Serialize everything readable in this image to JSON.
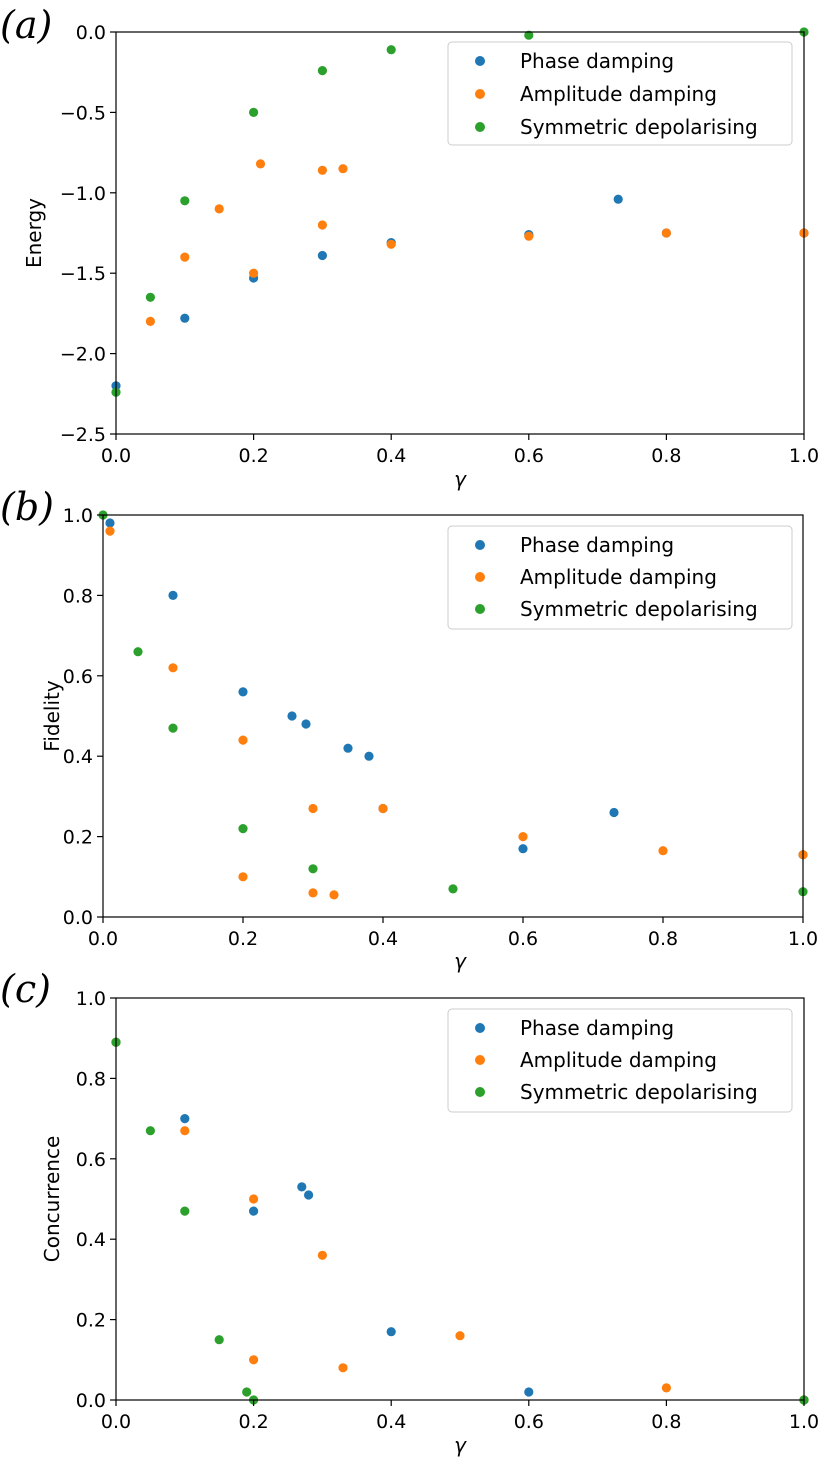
{
  "colors": {
    "phase": "#1f77b4",
    "amplitude": "#ff7f0e",
    "symmetric": "#2ca02c"
  },
  "chart_data": [
    {
      "type": "scatter",
      "panel": "(a)",
      "xlabel": "γ",
      "ylabel": "Energy",
      "xlim": [
        0.0,
        1.0
      ],
      "ylim": [
        -2.5,
        0.0
      ],
      "xticks": [
        "0.0",
        "0.2",
        "0.4",
        "0.6",
        "0.8",
        "1.0"
      ],
      "yticks": [
        "−2.5",
        "−2.0",
        "−1.5",
        "−1.0",
        "−0.5",
        "0.0"
      ],
      "legend_position": "top-right",
      "legend": [
        "Phase damping",
        "Amplitude damping",
        "Symmetric depolarising"
      ],
      "series": [
        {
          "name": "Phase damping",
          "points": [
            [
              0.0,
              -2.2
            ],
            [
              0.1,
              -1.78
            ],
            [
              0.2,
              -1.53
            ],
            [
              0.3,
              -1.39
            ],
            [
              0.4,
              -1.31
            ],
            [
              0.6,
              -1.26
            ],
            [
              0.73,
              -1.04
            ],
            [
              0.8,
              -1.25
            ],
            [
              1.0,
              -1.25
            ]
          ]
        },
        {
          "name": "Amplitude damping",
          "points": [
            [
              0.05,
              -1.8
            ],
            [
              0.1,
              -1.4
            ],
            [
              0.15,
              -1.1
            ],
            [
              0.21,
              -0.82
            ],
            [
              0.3,
              -0.86
            ],
            [
              0.33,
              -0.85
            ],
            [
              0.3,
              -1.2
            ],
            [
              0.2,
              -1.5
            ],
            [
              0.4,
              -1.32
            ],
            [
              0.6,
              -1.27
            ],
            [
              0.8,
              -1.25
            ],
            [
              1.0,
              -1.25
            ]
          ]
        },
        {
          "name": "Symmetric depolarising",
          "points": [
            [
              0.0,
              -2.24
            ],
            [
              0.05,
              -1.65
            ],
            [
              0.1,
              -1.05
            ],
            [
              0.2,
              -0.5
            ],
            [
              0.3,
              -0.24
            ],
            [
              0.4,
              -0.11
            ],
            [
              0.6,
              -0.02
            ],
            [
              1.0,
              0.0
            ]
          ]
        }
      ]
    },
    {
      "type": "scatter",
      "panel": "(b)",
      "xlabel": "γ",
      "ylabel": "Fidelity",
      "xlim": [
        0.0,
        1.0
      ],
      "ylim": [
        0.0,
        1.0
      ],
      "xticks": [
        "0.0",
        "0.2",
        "0.4",
        "0.6",
        "0.8",
        "1.0"
      ],
      "yticks": [
        "0.0",
        "0.2",
        "0.4",
        "0.6",
        "0.8",
        "1.0"
      ],
      "legend_position": "top-right",
      "legend": [
        "Phase damping",
        "Amplitude damping",
        "Symmetric depolarising"
      ],
      "series": [
        {
          "name": "Phase damping",
          "points": [
            [
              0.01,
              0.98
            ],
            [
              0.1,
              0.8
            ],
            [
              0.2,
              0.56
            ],
            [
              0.27,
              0.5
            ],
            [
              0.29,
              0.48
            ],
            [
              0.35,
              0.42
            ],
            [
              0.38,
              0.4
            ],
            [
              0.4,
              0.27
            ],
            [
              0.6,
              0.17
            ],
            [
              0.73,
              0.26
            ],
            [
              1.0,
              0.155
            ]
          ]
        },
        {
          "name": "Amplitude damping",
          "points": [
            [
              0.01,
              0.96
            ],
            [
              0.1,
              0.62
            ],
            [
              0.2,
              0.44
            ],
            [
              0.2,
              0.1
            ],
            [
              0.3,
              0.06
            ],
            [
              0.33,
              0.055
            ],
            [
              0.3,
              0.27
            ],
            [
              0.4,
              0.27
            ],
            [
              0.6,
              0.2
            ],
            [
              0.8,
              0.165
            ],
            [
              1.0,
              0.155
            ]
          ]
        },
        {
          "name": "Symmetric depolarising",
          "points": [
            [
              0.0,
              1.0
            ],
            [
              0.05,
              0.66
            ],
            [
              0.1,
              0.47
            ],
            [
              0.2,
              0.22
            ],
            [
              0.3,
              0.12
            ],
            [
              0.5,
              0.07
            ],
            [
              1.0,
              0.063
            ]
          ]
        }
      ]
    },
    {
      "type": "scatter",
      "panel": "(c)",
      "xlabel": "γ",
      "ylabel": "Concurrence",
      "xlim": [
        0.0,
        1.0
      ],
      "ylim": [
        0.0,
        1.0
      ],
      "xticks": [
        "0.0",
        "0.2",
        "0.4",
        "0.6",
        "0.8",
        "1.0"
      ],
      "yticks": [
        "0.0",
        "0.2",
        "0.4",
        "0.6",
        "0.8",
        "1.0"
      ],
      "legend_position": "top-right",
      "legend": [
        "Phase damping",
        "Amplitude damping",
        "Symmetric depolarising"
      ],
      "series": [
        {
          "name": "Phase damping",
          "points": [
            [
              0.0,
              0.89
            ],
            [
              0.1,
              0.7
            ],
            [
              0.2,
              0.47
            ],
            [
              0.27,
              0.53
            ],
            [
              0.28,
              0.51
            ],
            [
              0.4,
              0.17
            ],
            [
              0.6,
              0.02
            ],
            [
              1.0,
              0.0
            ]
          ]
        },
        {
          "name": "Amplitude damping",
          "points": [
            [
              0.0,
              0.89
            ],
            [
              0.1,
              0.67
            ],
            [
              0.2,
              0.5
            ],
            [
              0.3,
              0.36
            ],
            [
              0.2,
              0.1
            ],
            [
              0.33,
              0.08
            ],
            [
              0.5,
              0.16
            ],
            [
              0.8,
              0.03
            ],
            [
              1.0,
              0.0
            ]
          ]
        },
        {
          "name": "Symmetric depolarising",
          "points": [
            [
              0.0,
              0.89
            ],
            [
              0.05,
              0.67
            ],
            [
              0.1,
              0.47
            ],
            [
              0.15,
              0.15
            ],
            [
              0.19,
              0.02
            ],
            [
              0.2,
              0.0
            ],
            [
              1.0,
              0.0
            ]
          ]
        }
      ]
    }
  ]
}
